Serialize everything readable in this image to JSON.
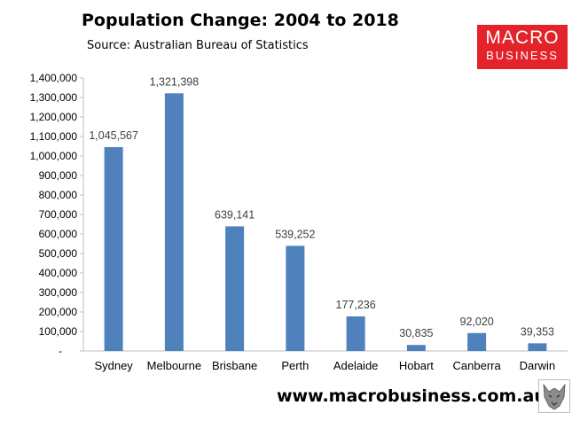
{
  "header": {
    "title": "Population Change: 2004 to 2018",
    "subtitle": "Source: Australian Bureau of Statistics"
  },
  "logo": {
    "line1": "MACRO",
    "line2": "BUSINESS",
    "background": "#e3222a"
  },
  "footer": {
    "url": "www.macrobusiness.com.au"
  },
  "colors": {
    "bar": "#4f81bd",
    "axis": "#bfbfbf"
  },
  "chart_data": {
    "type": "bar",
    "categories": [
      "Sydney",
      "Melbourne",
      "Brisbane",
      "Perth",
      "Adelaide",
      "Hobart",
      "Canberra",
      "Darwin"
    ],
    "values": [
      1045567,
      1321398,
      639141,
      539252,
      177236,
      30835,
      92020,
      39353
    ],
    "data_labels": [
      "1,045,567",
      "1,321,398",
      "639,141",
      "539,252",
      "177,236",
      "30,835",
      "92,020",
      "39,353"
    ],
    "yticks": [
      "-",
      "100,000",
      "200,000",
      "300,000",
      "400,000",
      "500,000",
      "600,000",
      "700,000",
      "800,000",
      "900,000",
      "1,000,000",
      "1,100,000",
      "1,200,000",
      "1,300,000",
      "1,400,000"
    ],
    "ylim": [
      0,
      1400000
    ],
    "grid": false,
    "legend": "none",
    "title": "Population Change: 2004 to 2018"
  }
}
